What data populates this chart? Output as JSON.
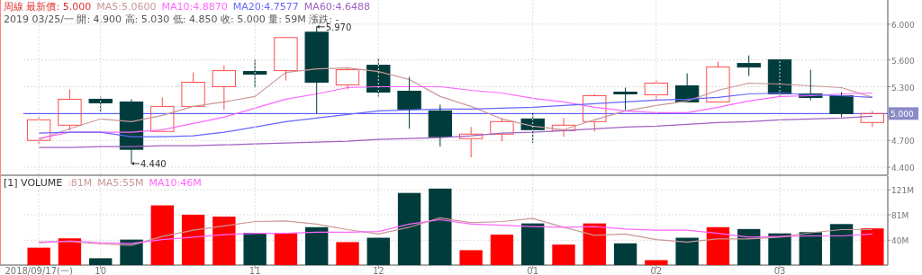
{
  "chart_data": [
    {
      "type": "candlestick",
      "title": "周線 最新價: 5.000",
      "subtitle": "2019 03/25/一 開: 4.900 高: 5.030 低: 4.850 收: 5.000 量: 59M 漲跌: -",
      "categories": [
        null,
        null,
        null,
        null,
        null,
        null,
        null,
        null,
        null,
        null,
        null,
        null,
        null,
        null,
        null,
        null,
        null,
        null,
        null,
        null,
        null,
        null,
        null,
        null,
        null,
        null,
        null,
        null
      ],
      "ohlc": [
        [
          4.7,
          4.96,
          4.66,
          4.93
        ],
        [
          4.87,
          5.27,
          4.81,
          5.16
        ],
        [
          5.16,
          5.19,
          5.02,
          5.12
        ],
        [
          5.13,
          5.16,
          4.44,
          4.6
        ],
        [
          4.8,
          5.18,
          4.8,
          5.08
        ],
        [
          5.08,
          5.46,
          5.08,
          5.35
        ],
        [
          5.3,
          5.54,
          5.04,
          5.48
        ],
        [
          5.47,
          5.6,
          5.29,
          5.44
        ],
        [
          5.48,
          5.86,
          5.37,
          5.85
        ],
        [
          5.91,
          5.97,
          5.0,
          5.35
        ],
        [
          5.32,
          5.51,
          5.27,
          5.49
        ],
        [
          5.54,
          5.62,
          5.19,
          5.24
        ],
        [
          5.25,
          5.41,
          4.83,
          5.05
        ],
        [
          5.03,
          5.1,
          4.63,
          4.74
        ],
        [
          4.72,
          4.85,
          4.51,
          4.77
        ],
        [
          4.77,
          4.95,
          4.69,
          4.91
        ],
        [
          4.94,
          5.01,
          4.67,
          4.82
        ],
        [
          4.81,
          4.95,
          4.74,
          4.87
        ],
        [
          4.91,
          5.22,
          4.8,
          5.2
        ],
        [
          5.24,
          5.29,
          5.04,
          5.22
        ],
        [
          5.21,
          5.37,
          5.14,
          5.34
        ],
        [
          5.31,
          5.45,
          5.13,
          5.13
        ],
        [
          5.13,
          5.58,
          5.13,
          5.52
        ],
        [
          5.56,
          5.65,
          5.42,
          5.52
        ],
        [
          5.6,
          5.6,
          5.2,
          5.22
        ],
        [
          5.22,
          5.49,
          5.15,
          5.18
        ],
        [
          5.2,
          5.24,
          4.96,
          5.0
        ],
        [
          4.9,
          5.03,
          4.85,
          5.0
        ]
      ],
      "colors": [
        "#ff4d4d",
        "#ff4d4d",
        "#003c3c",
        "#003c3c",
        "#ff4d4d",
        "#ff4d4d",
        "#ff4d4d",
        "#003c3c",
        "#ff4d4d",
        "#003c3c",
        "#ff4d4d",
        "#003c3c",
        "#003c3c",
        "#003c3c",
        "#ff4d4d",
        "#ff4d4d",
        "#003c3c",
        "#ff4d4d",
        "#ff4d4d",
        "#003c3c",
        "#ff4d4d",
        "#003c3c",
        "#ff4d4d",
        "#003c3c",
        "#003c3c",
        "#003c3c",
        "#003c3c",
        "#ff4d4d"
      ],
      "series": [
        {
          "name": "MA5:5.0600",
          "type": "line",
          "color": "#c89896",
          "values": [
            4.71,
            4.83,
            4.94,
            4.91,
            4.98,
            5.08,
            5.13,
            5.19,
            5.46,
            5.5,
            5.51,
            5.47,
            5.38,
            5.19,
            5.08,
            4.94,
            4.86,
            4.82,
            4.93,
            5.03,
            5.09,
            5.14,
            5.26,
            5.34,
            5.33,
            5.31,
            5.29,
            5.18
          ]
        },
        {
          "name": "MA10:4.8870",
          "type": "line",
          "color": "#ff66ff",
          "values": [
            4.72,
            4.79,
            4.79,
            4.79,
            4.82,
            4.89,
            4.96,
            5.06,
            5.16,
            5.22,
            5.29,
            5.3,
            5.3,
            5.3,
            5.26,
            5.23,
            5.17,
            5.13,
            5.07,
            5.03,
            5.01,
            5.01,
            5.07,
            5.14,
            5.19,
            5.2,
            5.22,
            5.23
          ]
        },
        {
          "name": "MA20:4.7577",
          "type": "line",
          "color": "#6666ff",
          "values": [
            4.78,
            4.79,
            4.79,
            4.74,
            4.74,
            4.75,
            4.79,
            4.85,
            4.91,
            4.95,
            4.99,
            5.03,
            5.04,
            5.05,
            5.05,
            5.06,
            5.07,
            5.09,
            5.11,
            5.13,
            5.15,
            5.16,
            5.18,
            5.22,
            5.23,
            5.21,
            5.2,
            5.18
          ]
        },
        {
          "name": "MA60:4.6488",
          "type": "line",
          "color": "#a060c0",
          "values": [
            4.62,
            4.62,
            4.63,
            4.63,
            4.64,
            4.64,
            4.65,
            4.66,
            4.67,
            4.68,
            4.69,
            4.71,
            4.72,
            4.73,
            4.75,
            4.78,
            4.79,
            4.81,
            4.83,
            4.85,
            4.86,
            4.88,
            4.9,
            4.91,
            4.93,
            4.94,
            4.95,
            4.97
          ]
        }
      ],
      "ylim": [
        4.31,
        6.27
      ],
      "yticks": [
        {
          "value": 4.4,
          "label": "4.400"
        },
        {
          "value": 4.7,
          "label": "4.700"
        },
        {
          "value": 5.3,
          "label": "5.300"
        },
        {
          "value": 5.6,
          "label": "5.600"
        },
        {
          "value": 6.0,
          "label": "6.000"
        }
      ],
      "ref_lines": [
        {
          "axis": "y",
          "value": 5.0,
          "label": "5.000",
          "color": "#4040ff"
        }
      ],
      "annotations": [
        "5.970",
        "4.440"
      ],
      "grid": true,
      "legend": "top",
      "tick_labels": "y"
    },
    {
      "type": "bar",
      "title": "[1] VOLUME",
      "annotations": [
        ":81M"
      ],
      "categories": [
        "2018/09/17(一)",
        null,
        "10",
        null,
        null,
        null,
        null,
        "11",
        null,
        null,
        null,
        "12",
        null,
        null,
        null,
        null,
        "01",
        null,
        null,
        null,
        "02",
        null,
        null,
        null,
        "03",
        null,
        null,
        null
      ],
      "series": [
        {
          "type": "bar",
          "colors": [
            "#ff0000",
            "#ff0000",
            "#003c3c",
            "#003c3c",
            "#ff0000",
            "#ff0000",
            "#ff0000",
            "#003c3c",
            "#ff0000",
            "#003c3c",
            "#ff0000",
            "#003c3c",
            "#003c3c",
            "#003c3c",
            "#ff0000",
            "#ff0000",
            "#003c3c",
            "#ff0000",
            "#ff0000",
            "#003c3c",
            "#ff0000",
            "#003c3c",
            "#ff0000",
            "#003c3c",
            "#003c3c",
            "#003c3c",
            "#003c3c",
            "#ff0000"
          ],
          "values": [
            28,
            43,
            11,
            41,
            96,
            81,
            78,
            52,
            52,
            61,
            37,
            44,
            116,
            123,
            24,
            49,
            67,
            33,
            67,
            35,
            8,
            44,
            61,
            58,
            51,
            53,
            66,
            59
          ]
        },
        {
          "name": "MA5:55M",
          "type": "line",
          "color": "#c89896",
          "values": [
            37,
            38,
            34,
            32,
            46,
            56,
            63,
            70,
            71,
            66,
            57,
            50,
            61,
            76,
            68,
            70,
            75,
            61,
            48,
            50,
            41,
            37,
            42,
            42,
            45,
            52,
            57,
            57
          ]
        },
        {
          "name": "MA10:46M",
          "type": "line",
          "color": "#ff66ff",
          "values": [
            36,
            39,
            36,
            35,
            41,
            45,
            49,
            51,
            51,
            53,
            53,
            54,
            66,
            73,
            66,
            64,
            62,
            61,
            62,
            58,
            56,
            56,
            51,
            45,
            46,
            47,
            47,
            50
          ]
        }
      ],
      "ylim": [
        0,
        143
      ],
      "yticks": [
        {
          "value": 40,
          "label": "40M"
        },
        {
          "value": 81,
          "label": "81M"
        },
        {
          "value": 121,
          "label": "121M"
        }
      ],
      "grid": true,
      "legend": "top left"
    }
  ]
}
